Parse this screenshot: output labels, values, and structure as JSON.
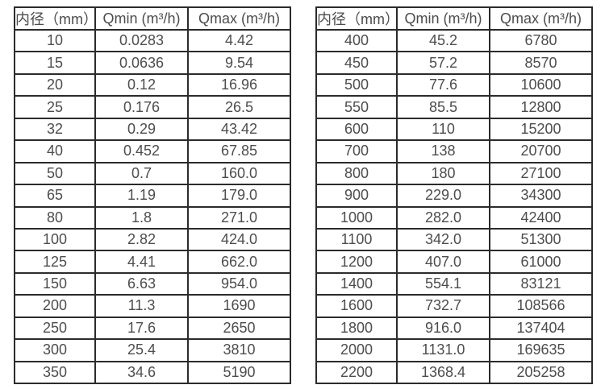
{
  "colors": {
    "background": "#ffffff",
    "grid_border": "#2b2b2b",
    "text": "#4d4d4d"
  },
  "chart_data": [
    {
      "type": "table",
      "title": "",
      "headers": [
        "内径（mm）",
        "Qmin (m³/h)",
        "Qmax (m³/h)"
      ],
      "rows": [
        [
          "10",
          "0.0283",
          "4.42"
        ],
        [
          "15",
          "0.0636",
          "9.54"
        ],
        [
          "20",
          "0.12",
          "16.96"
        ],
        [
          "25",
          "0.176",
          "26.5"
        ],
        [
          "32",
          "0.29",
          "43.42"
        ],
        [
          "40",
          "0.452",
          "67.85"
        ],
        [
          "50",
          "0.7",
          "160.0"
        ],
        [
          "65",
          "1.19",
          "179.0"
        ],
        [
          "80",
          "1.8",
          "271.0"
        ],
        [
          "100",
          "2.82",
          "424.0"
        ],
        [
          "125",
          "4.41",
          "662.0"
        ],
        [
          "150",
          "6.63",
          "954.0"
        ],
        [
          "200",
          "11.3",
          "1690"
        ],
        [
          "250",
          "17.6",
          "2650"
        ],
        [
          "300",
          "25.4",
          "3810"
        ],
        [
          "350",
          "34.6",
          "5190"
        ]
      ]
    },
    {
      "type": "table",
      "title": "",
      "headers": [
        "内径（mm）",
        "Qmin (m³/h)",
        "Qmax (m³/h)"
      ],
      "rows": [
        [
          "400",
          "45.2",
          "6780"
        ],
        [
          "450",
          "57.2",
          "8570"
        ],
        [
          "500",
          "77.6",
          "10600"
        ],
        [
          "550",
          "85.5",
          "12800"
        ],
        [
          "600",
          "110",
          "15200"
        ],
        [
          "700",
          "138",
          "20700"
        ],
        [
          "800",
          "180",
          "27100"
        ],
        [
          "900",
          "229.0",
          "34300"
        ],
        [
          "1000",
          "282.0",
          "42400"
        ],
        [
          "1100",
          "342.0",
          "51300"
        ],
        [
          "1200",
          "407.0",
          "61000"
        ],
        [
          "1400",
          "554.1",
          "83121"
        ],
        [
          "1600",
          "732.7",
          "108566"
        ],
        [
          "1800",
          "916.0",
          "137404"
        ],
        [
          "2000",
          "1131.0",
          "169635"
        ],
        [
          "2200",
          "1368.4",
          "205258"
        ]
      ]
    }
  ]
}
